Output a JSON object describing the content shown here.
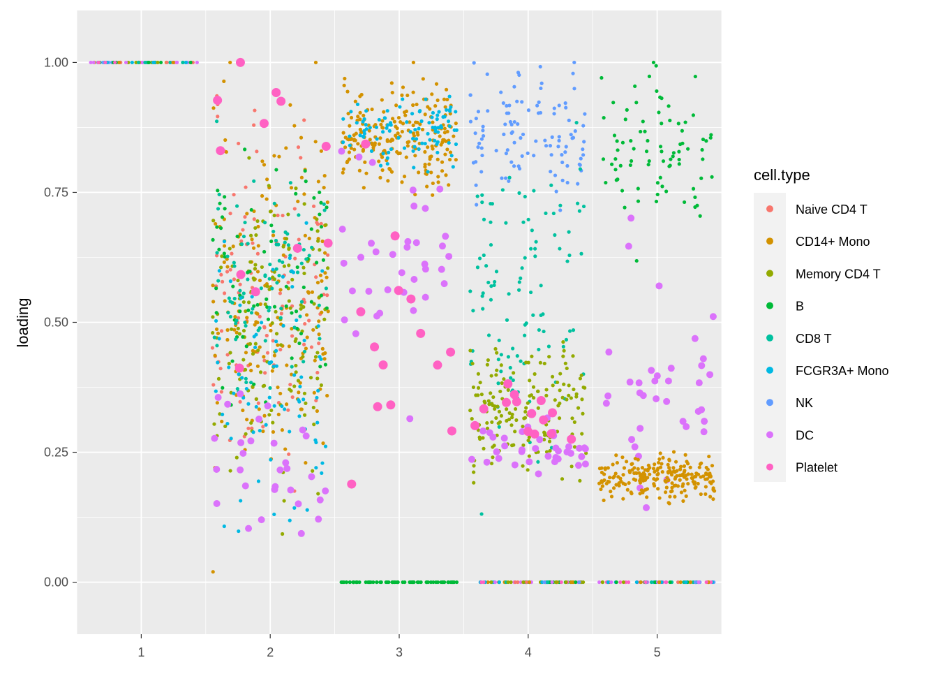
{
  "chart_data": {
    "type": "scatter",
    "subtype": "jitter-strip",
    "title": "",
    "xlabel": "",
    "ylabel": "loading",
    "x_ticks": [
      "1",
      "2",
      "3",
      "4",
      "5"
    ],
    "y_ticks": [
      "0.00",
      "0.25",
      "0.50",
      "0.75",
      "1.00"
    ],
    "xlim": [
      0.5,
      5.5
    ],
    "ylim": [
      -0.1,
      1.1
    ],
    "grid": true,
    "legend": {
      "title": "cell.type",
      "position": "right",
      "entries": [
        {
          "name": "Naive CD4 T",
          "color": "#F8766D"
        },
        {
          "name": "CD14+ Mono",
          "color": "#D39200"
        },
        {
          "name": "Memory CD4 T",
          "color": "#93AA00"
        },
        {
          "name": "B",
          "color": "#00BA38"
        },
        {
          "name": "CD8 T",
          "color": "#00C19F"
        },
        {
          "name": "FCGR3A+ Mono",
          "color": "#00B9E3"
        },
        {
          "name": "NK",
          "color": "#619CFF"
        },
        {
          "name": "DC",
          "color": "#DB72FB"
        },
        {
          "name": "Platelet",
          "color": "#FF61C3"
        }
      ]
    },
    "series": [
      {
        "component": 1,
        "cell_type": "all",
        "y_center": 1.0,
        "y_spread": 0.0,
        "note": "all cells at loading 1.00"
      },
      {
        "component": 2,
        "cell_type": "Naive CD4 T",
        "y_center": 0.52,
        "y_spread": 0.16
      },
      {
        "component": 2,
        "cell_type": "CD14+ Mono",
        "y_center": 0.55,
        "y_spread": 0.17
      },
      {
        "component": 2,
        "cell_type": "Memory CD4 T",
        "y_center": 0.49,
        "y_spread": 0.13
      },
      {
        "component": 2,
        "cell_type": "B",
        "y_center": 0.58,
        "y_spread": 0.12
      },
      {
        "component": 2,
        "cell_type": "CD8 T",
        "y_center": 0.57,
        "y_spread": 0.1
      },
      {
        "component": 2,
        "cell_type": "FCGR3A+ Mono",
        "y_center": 0.4,
        "y_spread": 0.12
      },
      {
        "component": 2,
        "cell_type": "DC",
        "y_center": 0.22,
        "y_spread": 0.08
      },
      {
        "component": 2,
        "cell_type": "Platelet",
        "y_center": 0.8,
        "y_spread": 0.25
      },
      {
        "component": 3,
        "cell_type": "CD14+ Mono",
        "y_center": 0.86,
        "y_spread": 0.05
      },
      {
        "component": 3,
        "cell_type": "FCGR3A+ Mono",
        "y_center": 0.87,
        "y_spread": 0.03
      },
      {
        "component": 3,
        "cell_type": "DC",
        "y_center": 0.63,
        "y_spread": 0.1
      },
      {
        "component": 3,
        "cell_type": "Platelet",
        "y_center": 0.5,
        "y_spread": 0.15
      },
      {
        "component": 3,
        "cell_type": "B",
        "y_center": 0.0,
        "y_spread": 0.0
      },
      {
        "component": 4,
        "cell_type": "NK",
        "y_center": 0.86,
        "y_spread": 0.06
      },
      {
        "component": 4,
        "cell_type": "CD8 T",
        "y_center": 0.53,
        "y_spread": 0.15
      },
      {
        "component": 4,
        "cell_type": "Memory CD4 T",
        "y_center": 0.34,
        "y_spread": 0.06
      },
      {
        "component": 4,
        "cell_type": "DC",
        "y_center": 0.25,
        "y_spread": 0.03
      },
      {
        "component": 4,
        "cell_type": "Platelet",
        "y_center": 0.33,
        "y_spread": 0.03
      },
      {
        "component": 4,
        "cell_type": "all others",
        "y_center": 0.0,
        "y_spread": 0.0
      },
      {
        "component": 5,
        "cell_type": "B",
        "y_center": 0.83,
        "y_spread": 0.07
      },
      {
        "component": 5,
        "cell_type": "DC",
        "y_center": 0.4,
        "y_spread": 0.1
      },
      {
        "component": 5,
        "cell_type": "CD14+ Mono",
        "y_center": 0.2,
        "y_spread": 0.02
      },
      {
        "component": 5,
        "cell_type": "all others",
        "y_center": 0.0,
        "y_spread": 0.0
      }
    ]
  }
}
